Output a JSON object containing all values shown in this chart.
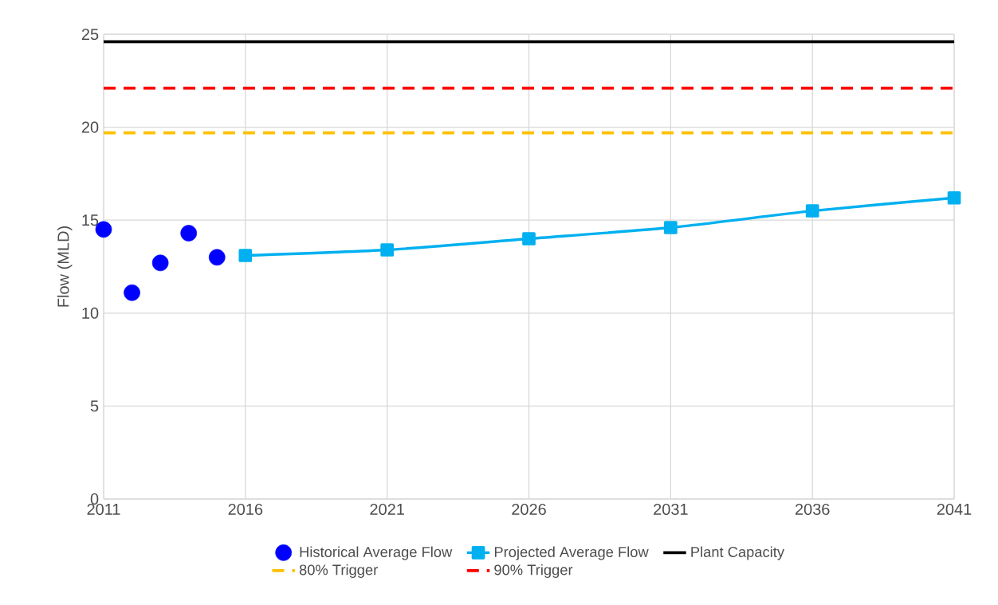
{
  "chart_data": {
    "type": "line",
    "ylabel": "Flow (MLD)",
    "series": [
      {
        "name": "Historical Average Flow",
        "type": "scatter",
        "marker": "circle",
        "color": "#0000ff",
        "x": [
          2011,
          2012,
          2013,
          2014,
          2015
        ],
        "values": [
          14.5,
          11.1,
          12.7,
          14.3,
          13.0
        ]
      },
      {
        "name": "Projected Average Flow",
        "marker": "square",
        "color": "#00b0f0",
        "x": [
          2016,
          2021,
          2026,
          2031,
          2036,
          2041
        ],
        "values": [
          13.1,
          13.4,
          14.0,
          14.6,
          15.5,
          16.2
        ]
      }
    ],
    "ref_lines": [
      {
        "axis": "y",
        "value": 24.6,
        "label": "Plant Capacity",
        "color": "#000000",
        "line_style": "solid"
      },
      {
        "axis": "y",
        "value": 19.7,
        "label": "80% Trigger",
        "color": "#ffc000",
        "line_style": "dashed"
      },
      {
        "axis": "y",
        "value": 22.1,
        "label": "90% Trigger",
        "color": "#ff0000",
        "line_style": "dashed"
      }
    ],
    "xlim": [
      2011,
      2041
    ],
    "xticks": [
      2011,
      2016,
      2021,
      2026,
      2031,
      2036,
      2041
    ],
    "ylim": [
      0,
      25
    ],
    "yticks": [
      0,
      5,
      10,
      15,
      20,
      25
    ],
    "grid": true,
    "legend": "bottom"
  }
}
